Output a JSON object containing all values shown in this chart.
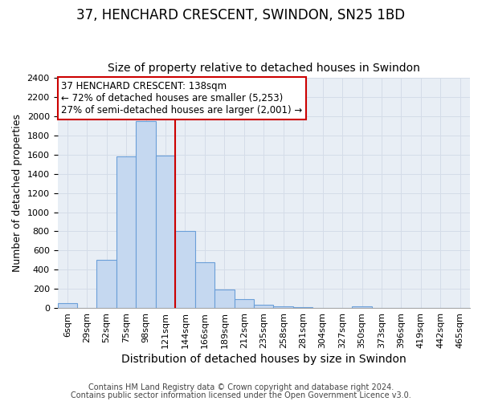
{
  "title": "37, HENCHARD CRESCENT, SWINDON, SN25 1BD",
  "subtitle": "Size of property relative to detached houses in Swindon",
  "xlabel": "Distribution of detached houses by size in Swindon",
  "ylabel": "Number of detached properties",
  "footnote1": "Contains HM Land Registry data © Crown copyright and database right 2024.",
  "footnote2": "Contains public sector information licensed under the Open Government Licence v3.0.",
  "categories": [
    "6sqm",
    "29sqm",
    "52sqm",
    "75sqm",
    "98sqm",
    "121sqm",
    "144sqm",
    "166sqm",
    "189sqm",
    "212sqm",
    "235sqm",
    "258sqm",
    "281sqm",
    "304sqm",
    "327sqm",
    "350sqm",
    "373sqm",
    "396sqm",
    "419sqm",
    "442sqm",
    "465sqm"
  ],
  "bar_heights": [
    50,
    0,
    500,
    1580,
    1950,
    1590,
    800,
    475,
    190,
    90,
    30,
    20,
    5,
    0,
    0,
    15,
    0,
    0,
    0,
    0,
    0
  ],
  "bar_color": "#c5d8f0",
  "bar_edge_color": "#6a9fd8",
  "grid_color": "#d4dce8",
  "background_color": "#e8eef5",
  "annotation_line1": "37 HENCHARD CRESCENT: 138sqm",
  "annotation_line2": "← 72% of detached houses are smaller (5,253)",
  "annotation_line3": "27% of semi-detached houses are larger (2,001) →",
  "vline_color": "#cc0000",
  "vline_position": 5.5,
  "ylim": [
    0,
    2400
  ],
  "yticks": [
    0,
    200,
    400,
    600,
    800,
    1000,
    1200,
    1400,
    1600,
    1800,
    2000,
    2200,
    2400
  ],
  "annotation_box_facecolor": "#ffffff",
  "annotation_border_color": "#cc0000",
  "title_fontsize": 12,
  "subtitle_fontsize": 10,
  "ylabel_fontsize": 9,
  "xlabel_fontsize": 10,
  "annotation_fontsize": 8.5,
  "tick_fontsize": 8,
  "footer_fontsize": 7
}
